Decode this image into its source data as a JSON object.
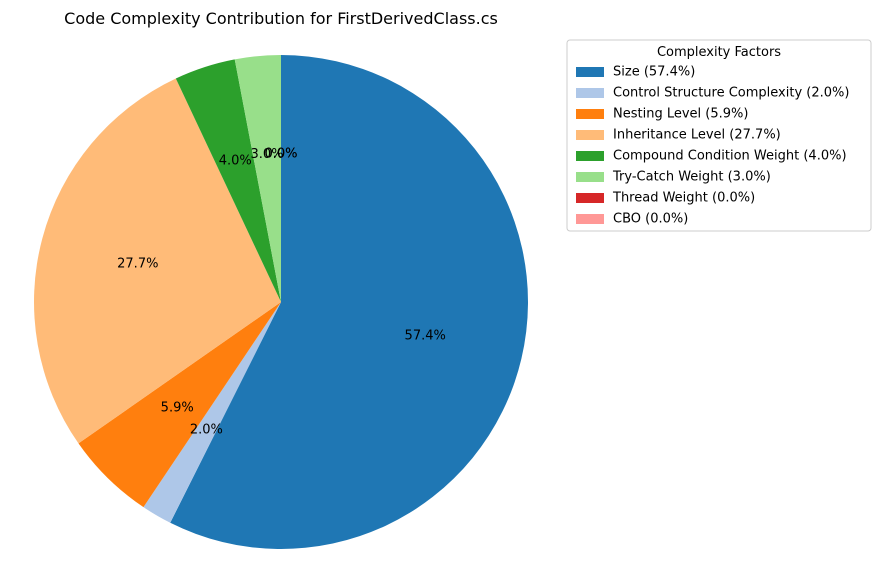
{
  "chart_data": {
    "type": "pie",
    "title": "Code Complexity Contribution for FirstDerivedClass.cs",
    "legend": {
      "title": "Complexity Factors",
      "placement": "right"
    },
    "start_angle": "top",
    "direction": "clockwise",
    "slices": [
      {
        "label": "Size",
        "value": 57.4,
        "pct_label": "57.4%",
        "legend_label": "Size (57.4%)",
        "color": "#1f77b4"
      },
      {
        "label": "Control Structure Complexity",
        "value": 2.0,
        "pct_label": "2.0%",
        "legend_label": "Control Structure Complexity (2.0%)",
        "color": "#aec7e8"
      },
      {
        "label": "Nesting Level",
        "value": 5.9,
        "pct_label": "5.9%",
        "legend_label": "Nesting Level (5.9%)",
        "color": "#ff7f0e"
      },
      {
        "label": "Inheritance Level",
        "value": 27.7,
        "pct_label": "27.7%",
        "legend_label": "Inheritance Level (27.7%)",
        "color": "#ffbb78"
      },
      {
        "label": "Compound Condition Weight",
        "value": 4.0,
        "pct_label": "4.0%",
        "legend_label": "Compound Condition Weight (4.0%)",
        "color": "#2ca02c"
      },
      {
        "label": "Try-Catch Weight",
        "value": 3.0,
        "pct_label": "3.0%",
        "legend_label": "Try-Catch Weight (3.0%)",
        "color": "#98df8a"
      },
      {
        "label": "Thread Weight",
        "value": 0.0,
        "pct_label": "0.0%",
        "legend_label": "Thread Weight (0.0%)",
        "color": "#d62728"
      },
      {
        "label": "CBO",
        "value": 0.0,
        "pct_label": "0.0%",
        "legend_label": "CBO (0.0%)",
        "color": "#ff9896"
      }
    ]
  }
}
